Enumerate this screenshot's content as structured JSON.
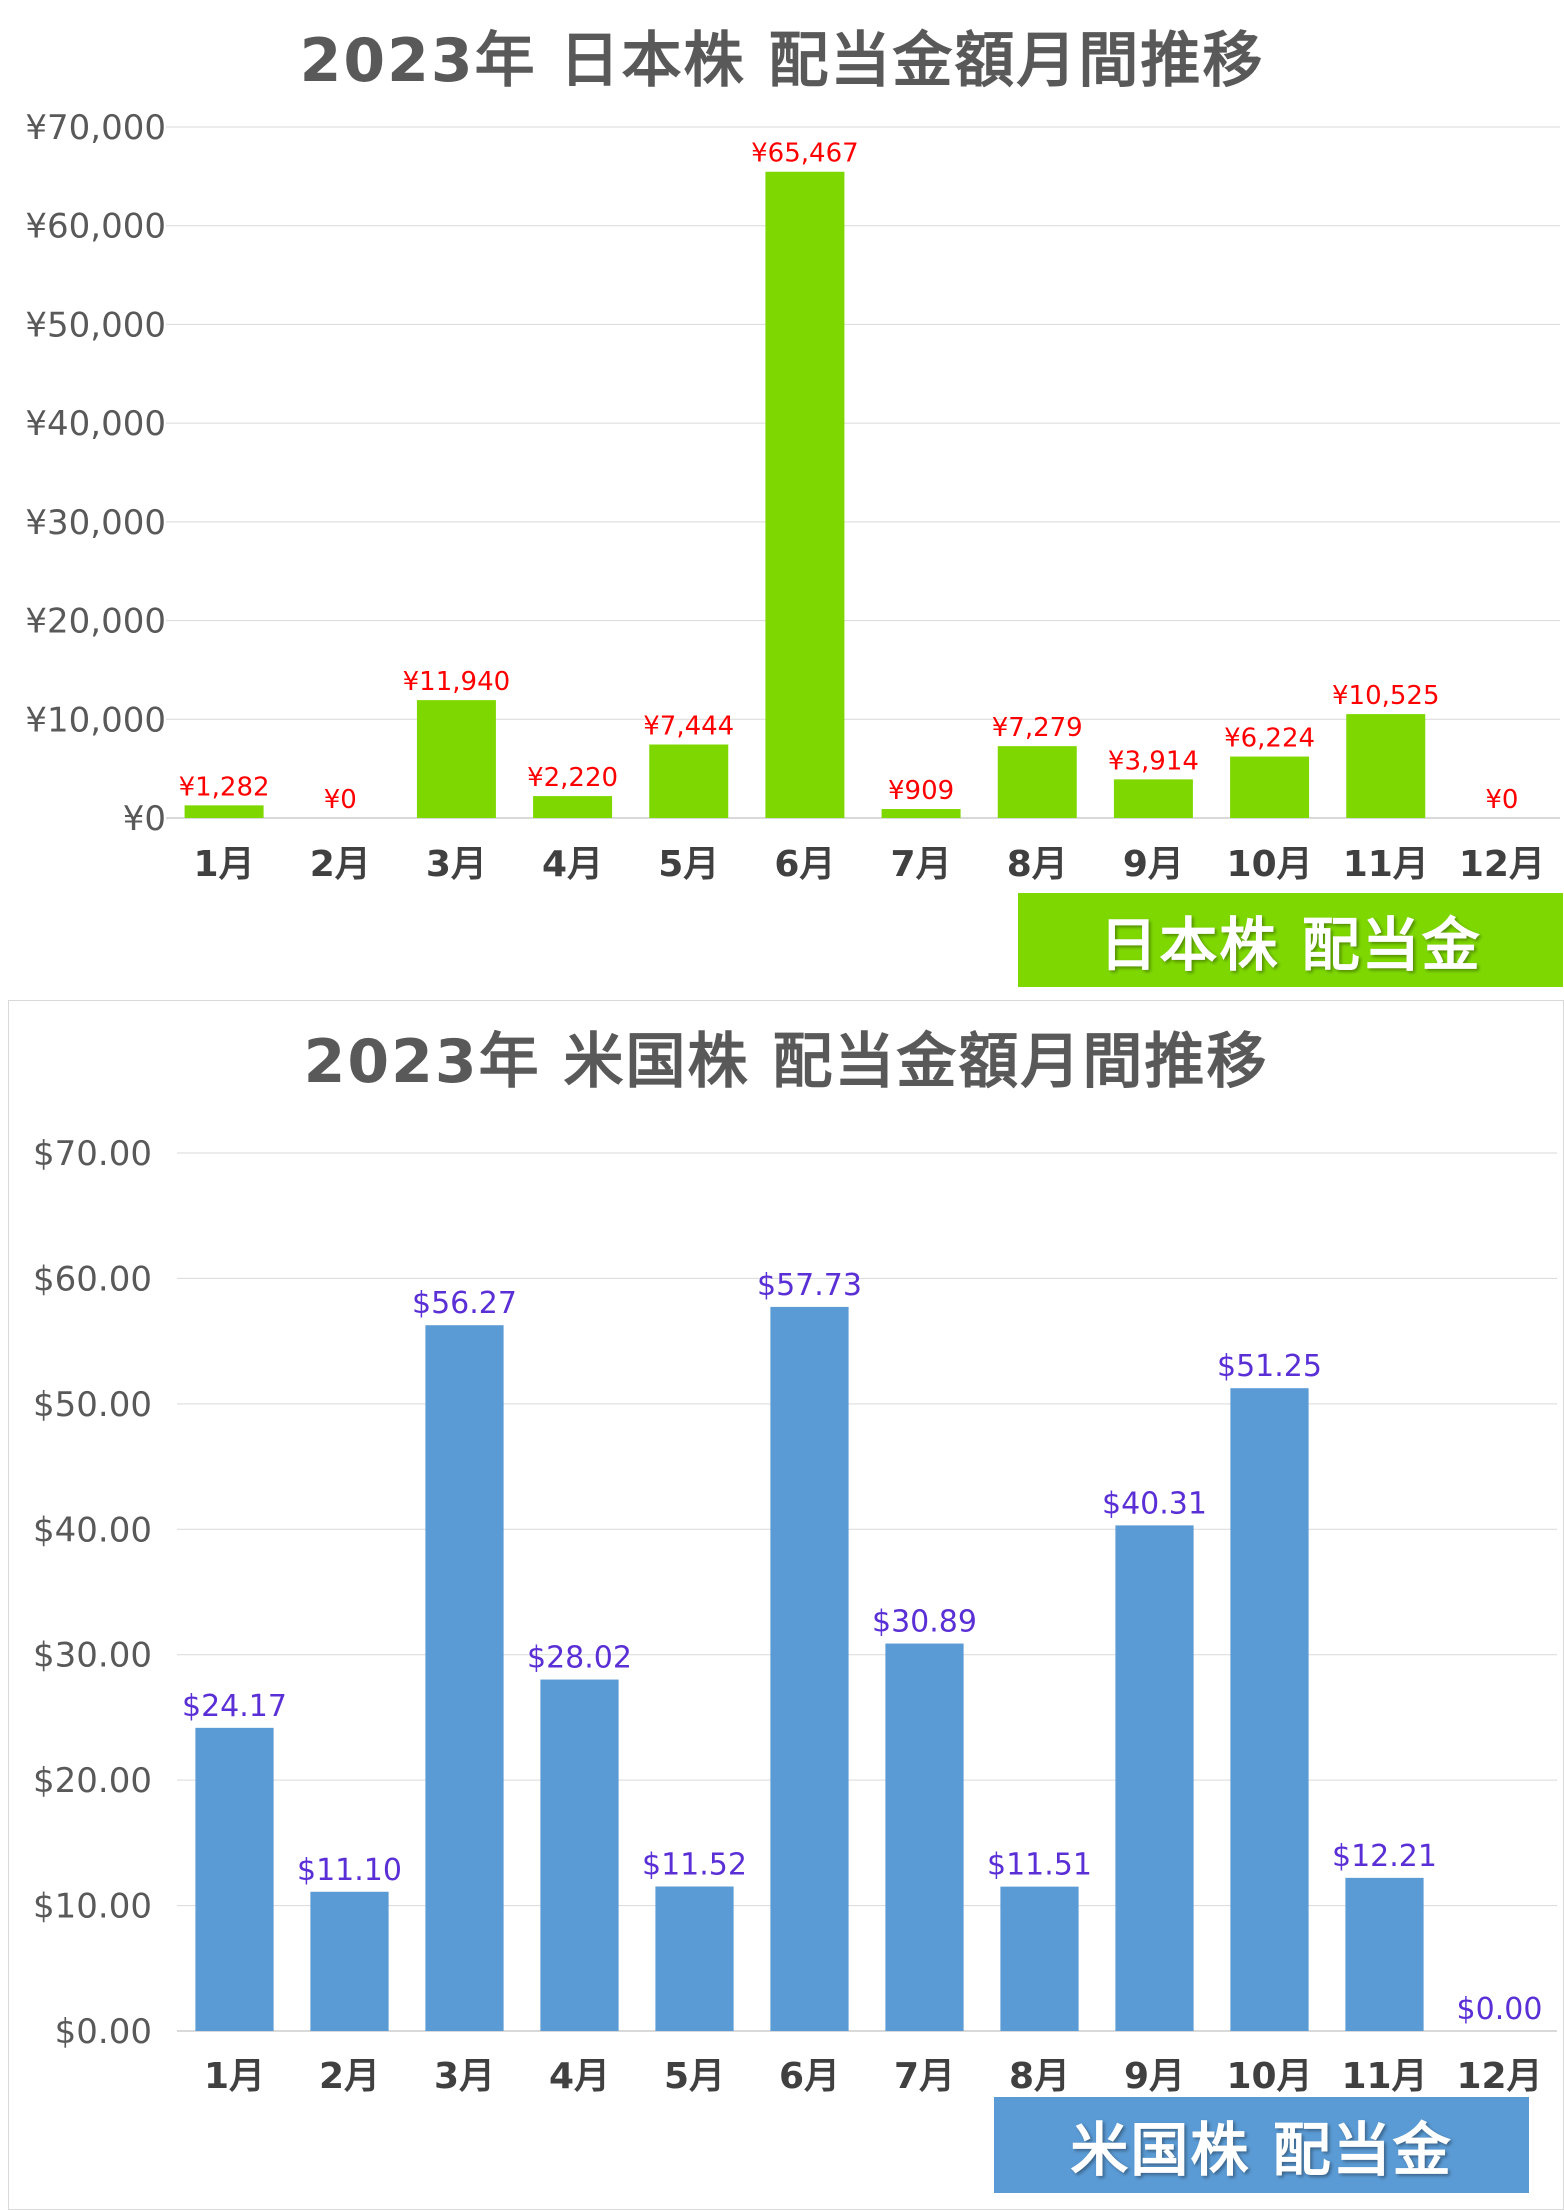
{
  "colors": {
    "jp_bar": "#7ed800",
    "us_bar": "#5b9bd5",
    "jp_label": "#ff0000",
    "us_label": "#5a2fd6",
    "grid": "#d9d9d9"
  },
  "charts": {
    "jp": {
      "title": "2023年 日本株 配当金額月間推移",
      "badge": "日本株 配当金"
    },
    "us": {
      "title": "2023年 米国株 配当金額月間推移",
      "badge": "米国株 配当金"
    }
  },
  "chart_data": [
    {
      "type": "bar",
      "title": "2023年 日本株 配当金額月間推移",
      "categories": [
        "1月",
        "2月",
        "3月",
        "4月",
        "5月",
        "6月",
        "7月",
        "8月",
        "9月",
        "10月",
        "11月",
        "12月"
      ],
      "values": [
        1282,
        0,
        11940,
        2220,
        7444,
        65467,
        909,
        7279,
        3914,
        6224,
        10525,
        0
      ],
      "data_labels": [
        "¥1,282",
        "¥0",
        "¥11,940",
        "¥2,220",
        "¥7,444",
        "¥65,467",
        "¥909",
        "¥7,279",
        "¥3,914",
        "¥6,224",
        "¥10,525",
        "¥0"
      ],
      "ylim": [
        0,
        70000
      ],
      "yticks": [
        "¥0",
        "¥10,000",
        "¥20,000",
        "¥30,000",
        "¥40,000",
        "¥50,000",
        "¥60,000",
        "¥70,000"
      ],
      "grid": true,
      "legend": "bottom-right"
    },
    {
      "type": "bar",
      "title": "2023年 米国株 配当金額月間推移",
      "categories": [
        "1月",
        "2月",
        "3月",
        "4月",
        "5月",
        "6月",
        "7月",
        "8月",
        "9月",
        "10月",
        "11月",
        "12月"
      ],
      "values": [
        24.17,
        11.1,
        56.27,
        28.02,
        11.52,
        57.73,
        30.89,
        11.51,
        40.31,
        51.25,
        12.21,
        0.0
      ],
      "data_labels": [
        "$24.17",
        "$11.10",
        "$56.27",
        "$28.02",
        "$11.52",
        "$57.73",
        "$30.89",
        "$11.51",
        "$40.31",
        "$51.25",
        "$12.21",
        "$0.00"
      ],
      "ylim": [
        0,
        70
      ],
      "yticks": [
        "$0.00",
        "$10.00",
        "$20.00",
        "$30.00",
        "$40.00",
        "$50.00",
        "$60.00",
        "$70.00"
      ],
      "grid": true,
      "legend": "bottom-right"
    }
  ]
}
